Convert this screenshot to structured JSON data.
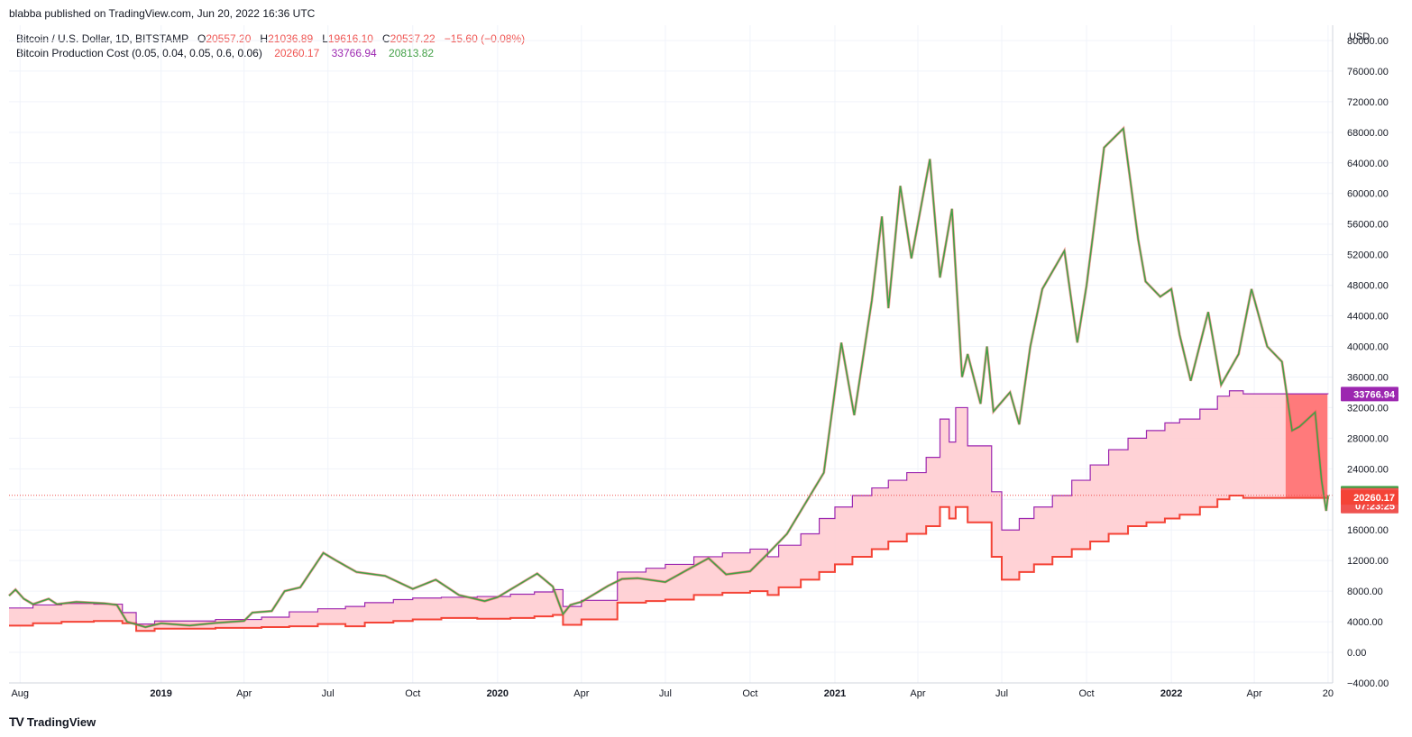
{
  "header": {
    "published": "blabba published on TradingView.com, Jun 20, 2022 16:36 UTC"
  },
  "legend": {
    "symbol": "Bitcoin / U.S. Dollar, 1D, BITSTAMP",
    "o_label": "O",
    "o_value": "20557.20",
    "h_label": "H",
    "h_value": "21036.89",
    "l_label": "L",
    "l_value": "19616.10",
    "c_label": "C",
    "c_value": "20537.22",
    "change": "−15.60 (−0.08%)",
    "indicator": "Bitcoin Production Cost (0.05, 0.04, 0.05, 0.6, 0.06)",
    "ind_v1": "20260.17",
    "ind_v2": "33766.94",
    "ind_v3": "20813.82"
  },
  "brand": {
    "name": "TradingView",
    "logo": "TV"
  },
  "colors": {
    "price_line": "#43a047",
    "candle_up": "#26a69a",
    "candle_down": "#ef5350",
    "lower_cost": "#f44336",
    "upper_cost": "#9c27b0",
    "band_fill": "#ffcdd2",
    "band_fill_strong": "#ff6b6b",
    "grid": "#f0f3fa"
  },
  "chart_data": {
    "type": "line",
    "currency": "USD",
    "ylim": [
      -4000,
      82000
    ],
    "yticks": [
      -4000,
      0,
      4000,
      8000,
      12000,
      16000,
      20000,
      24000,
      28000,
      32000,
      36000,
      40000,
      44000,
      48000,
      52000,
      56000,
      60000,
      64000,
      68000,
      72000,
      76000,
      80000
    ],
    "ytick_labels": [
      "−4000.00",
      "0.00",
      "4000.00",
      "8000.00",
      "12000.00",
      "16000.00",
      "20000.00",
      "24000.00",
      "28000.00",
      "32000.00",
      "36000.00",
      "40000.00",
      "44000.00",
      "48000.00",
      "52000.00",
      "56000.00",
      "60000.00",
      "64000.00",
      "68000.00",
      "72000.00",
      "76000.00",
      "80000.00"
    ],
    "xlim": [
      "2018-07-20",
      "2022-06-25"
    ],
    "xticks": [
      {
        "date": "2018-08-01",
        "label": "Aug",
        "bold": false
      },
      {
        "date": "2019-01-01",
        "label": "2019",
        "bold": true
      },
      {
        "date": "2019-04-01",
        "label": "Apr",
        "bold": false
      },
      {
        "date": "2019-07-01",
        "label": "Jul",
        "bold": false
      },
      {
        "date": "2019-10-01",
        "label": "Oct",
        "bold": false
      },
      {
        "date": "2020-01-01",
        "label": "2020",
        "bold": true
      },
      {
        "date": "2020-04-01",
        "label": "Apr",
        "bold": false
      },
      {
        "date": "2020-07-01",
        "label": "Jul",
        "bold": false
      },
      {
        "date": "2020-10-01",
        "label": "Oct",
        "bold": false
      },
      {
        "date": "2021-01-01",
        "label": "2021",
        "bold": true
      },
      {
        "date": "2021-04-01",
        "label": "Apr",
        "bold": false
      },
      {
        "date": "2021-07-01",
        "label": "Jul",
        "bold": false
      },
      {
        "date": "2021-10-01",
        "label": "Oct",
        "bold": false
      },
      {
        "date": "2022-01-01",
        "label": "2022",
        "bold": true
      },
      {
        "date": "2022-04-01",
        "label": "Apr",
        "bold": false
      },
      {
        "date": "2022-06-20",
        "label": "20",
        "bold": false
      }
    ],
    "grid": true,
    "last_price_line": 20537.22,
    "series": [
      {
        "id": "price",
        "points": [
          [
            "2018-07-20",
            7400
          ],
          [
            "2018-07-27",
            8200
          ],
          [
            "2018-08-05",
            7000
          ],
          [
            "2018-08-15",
            6300
          ],
          [
            "2018-09-01",
            7000
          ],
          [
            "2018-09-10",
            6300
          ],
          [
            "2018-10-01",
            6600
          ],
          [
            "2018-11-01",
            6400
          ],
          [
            "2018-11-14",
            6200
          ],
          [
            "2018-11-25",
            4000
          ],
          [
            "2018-12-15",
            3300
          ],
          [
            "2019-01-01",
            3800
          ],
          [
            "2019-02-01",
            3500
          ],
          [
            "2019-03-01",
            3850
          ],
          [
            "2019-04-01",
            4100
          ],
          [
            "2019-04-10",
            5200
          ],
          [
            "2019-05-01",
            5400
          ],
          [
            "2019-05-15",
            8000
          ],
          [
            "2019-06-01",
            8500
          ],
          [
            "2019-06-26",
            13000
          ],
          [
            "2019-07-10",
            12000
          ],
          [
            "2019-08-01",
            10500
          ],
          [
            "2019-09-01",
            10000
          ],
          [
            "2019-10-01",
            8300
          ],
          [
            "2019-10-26",
            9500
          ],
          [
            "2019-11-20",
            7500
          ],
          [
            "2019-12-18",
            6700
          ],
          [
            "2020-01-01",
            7200
          ],
          [
            "2020-02-13",
            10300
          ],
          [
            "2020-03-01",
            8600
          ],
          [
            "2020-03-12",
            5000
          ],
          [
            "2020-03-20",
            6200
          ],
          [
            "2020-04-01",
            6600
          ],
          [
            "2020-04-30",
            8700
          ],
          [
            "2020-05-15",
            9600
          ],
          [
            "2020-06-01",
            9700
          ],
          [
            "2020-07-01",
            9200
          ],
          [
            "2020-07-28",
            11000
          ],
          [
            "2020-08-17",
            12300
          ],
          [
            "2020-09-05",
            10200
          ],
          [
            "2020-10-01",
            10600
          ],
          [
            "2020-10-21",
            13000
          ],
          [
            "2020-11-10",
            15500
          ],
          [
            "2020-11-30",
            19500
          ],
          [
            "2020-12-20",
            23500
          ],
          [
            "2021-01-08",
            40500
          ],
          [
            "2021-01-22",
            31000
          ],
          [
            "2021-02-10",
            46000
          ],
          [
            "2021-02-21",
            57000
          ],
          [
            "2021-02-28",
            45000
          ],
          [
            "2021-03-13",
            61000
          ],
          [
            "2021-03-25",
            51500
          ],
          [
            "2021-04-14",
            64500
          ],
          [
            "2021-04-25",
            49000
          ],
          [
            "2021-05-08",
            58000
          ],
          [
            "2021-05-19",
            36000
          ],
          [
            "2021-05-25",
            39000
          ],
          [
            "2021-06-08",
            32500
          ],
          [
            "2021-06-15",
            40000
          ],
          [
            "2021-06-22",
            31500
          ],
          [
            "2021-07-10",
            34000
          ],
          [
            "2021-07-20",
            29800
          ],
          [
            "2021-08-01",
            40000
          ],
          [
            "2021-08-14",
            47500
          ],
          [
            "2021-09-07",
            52500
          ],
          [
            "2021-09-21",
            40500
          ],
          [
            "2021-10-01",
            48000
          ],
          [
            "2021-10-20",
            66000
          ],
          [
            "2021-11-10",
            68500
          ],
          [
            "2021-11-26",
            54000
          ],
          [
            "2021-12-04",
            48500
          ],
          [
            "2021-12-20",
            46500
          ],
          [
            "2022-01-01",
            47500
          ],
          [
            "2022-01-10",
            41500
          ],
          [
            "2022-01-22",
            35500
          ],
          [
            "2022-02-10",
            44500
          ],
          [
            "2022-02-24",
            35000
          ],
          [
            "2022-03-15",
            39000
          ],
          [
            "2022-03-29",
            47500
          ],
          [
            "2022-04-15",
            40000
          ],
          [
            "2022-05-01",
            38000
          ],
          [
            "2022-05-12",
            29000
          ],
          [
            "2022-05-20",
            29500
          ],
          [
            "2022-06-06",
            31400
          ],
          [
            "2022-06-13",
            22500
          ],
          [
            "2022-06-18",
            18500
          ],
          [
            "2022-06-20",
            20537
          ]
        ]
      },
      {
        "id": "cost_lower",
        "value": 20260.17,
        "steps": [
          [
            "2018-07-20",
            3500
          ],
          [
            "2018-08-15",
            3800
          ],
          [
            "2018-09-15",
            4000
          ],
          [
            "2018-10-20",
            4100
          ],
          [
            "2018-11-20",
            3800
          ],
          [
            "2018-12-05",
            2800
          ],
          [
            "2018-12-25",
            3100
          ],
          [
            "2019-03-01",
            3200
          ],
          [
            "2019-04-20",
            3300
          ],
          [
            "2019-05-20",
            3400
          ],
          [
            "2019-06-20",
            3700
          ],
          [
            "2019-07-20",
            3400
          ],
          [
            "2019-08-10",
            3900
          ],
          [
            "2019-09-10",
            4100
          ],
          [
            "2019-10-01",
            4300
          ],
          [
            "2019-11-01",
            4500
          ],
          [
            "2019-12-10",
            4400
          ],
          [
            "2020-01-15",
            4500
          ],
          [
            "2020-02-10",
            4700
          ],
          [
            "2020-03-01",
            4900
          ],
          [
            "2020-03-12",
            3600
          ],
          [
            "2020-04-01",
            4300
          ],
          [
            "2020-05-10",
            6500
          ],
          [
            "2020-06-10",
            6700
          ],
          [
            "2020-07-01",
            6900
          ],
          [
            "2020-08-01",
            7500
          ],
          [
            "2020-09-01",
            7800
          ],
          [
            "2020-10-01",
            8000
          ],
          [
            "2020-10-20",
            7500
          ],
          [
            "2020-11-01",
            8500
          ],
          [
            "2020-11-25",
            9500
          ],
          [
            "2020-12-15",
            10500
          ],
          [
            "2021-01-01",
            11500
          ],
          [
            "2021-01-20",
            12500
          ],
          [
            "2021-02-10",
            13500
          ],
          [
            "2021-02-28",
            14500
          ],
          [
            "2021-03-20",
            15500
          ],
          [
            "2021-04-10",
            16500
          ],
          [
            "2021-04-25",
            19000
          ],
          [
            "2021-05-05",
            17500
          ],
          [
            "2021-05-12",
            19000
          ],
          [
            "2021-05-25",
            17000
          ],
          [
            "2021-06-20",
            12500
          ],
          [
            "2021-07-01",
            9500
          ],
          [
            "2021-07-20",
            10500
          ],
          [
            "2021-08-05",
            11500
          ],
          [
            "2021-08-25",
            12500
          ],
          [
            "2021-09-15",
            13500
          ],
          [
            "2021-10-05",
            14500
          ],
          [
            "2021-10-25",
            15500
          ],
          [
            "2021-11-15",
            16500
          ],
          [
            "2021-12-05",
            17000
          ],
          [
            "2021-12-25",
            17500
          ],
          [
            "2022-01-10",
            18000
          ],
          [
            "2022-02-01",
            19000
          ],
          [
            "2022-02-20",
            20000
          ],
          [
            "2022-03-05",
            20500
          ],
          [
            "2022-03-20",
            20200
          ],
          [
            "2022-06-20",
            20260
          ]
        ]
      },
      {
        "id": "cost_upper",
        "value": 33766.94,
        "steps": [
          [
            "2018-07-20",
            5800
          ],
          [
            "2018-08-15",
            6200
          ],
          [
            "2018-09-15",
            6400
          ],
          [
            "2018-10-20",
            6300
          ],
          [
            "2018-11-20",
            5200
          ],
          [
            "2018-12-05",
            3700
          ],
          [
            "2018-12-25",
            4100
          ],
          [
            "2019-03-01",
            4300
          ],
          [
            "2019-04-20",
            4600
          ],
          [
            "2019-05-20",
            5300
          ],
          [
            "2019-06-20",
            5700
          ],
          [
            "2019-07-20",
            6000
          ],
          [
            "2019-08-10",
            6500
          ],
          [
            "2019-09-10",
            6900
          ],
          [
            "2019-10-01",
            7100
          ],
          [
            "2019-11-01",
            7200
          ],
          [
            "2019-12-10",
            7300
          ],
          [
            "2020-01-15",
            7600
          ],
          [
            "2020-02-10",
            7900
          ],
          [
            "2020-03-01",
            8200
          ],
          [
            "2020-03-12",
            6000
          ],
          [
            "2020-04-01",
            6800
          ],
          [
            "2020-05-10",
            10500
          ],
          [
            "2020-06-10",
            11000
          ],
          [
            "2020-07-01",
            11500
          ],
          [
            "2020-08-01",
            12500
          ],
          [
            "2020-09-01",
            13000
          ],
          [
            "2020-10-01",
            13500
          ],
          [
            "2020-10-20",
            12500
          ],
          [
            "2020-11-01",
            14000
          ],
          [
            "2020-11-25",
            15500
          ],
          [
            "2020-12-15",
            17500
          ],
          [
            "2021-01-01",
            19000
          ],
          [
            "2021-01-20",
            20500
          ],
          [
            "2021-02-10",
            21500
          ],
          [
            "2021-02-28",
            22500
          ],
          [
            "2021-03-20",
            23500
          ],
          [
            "2021-04-10",
            25500
          ],
          [
            "2021-04-25",
            30500
          ],
          [
            "2021-05-05",
            27500
          ],
          [
            "2021-05-12",
            32000
          ],
          [
            "2021-05-25",
            27000
          ],
          [
            "2021-06-20",
            21000
          ],
          [
            "2021-07-01",
            16000
          ],
          [
            "2021-07-20",
            17500
          ],
          [
            "2021-08-05",
            19000
          ],
          [
            "2021-08-25",
            20500
          ],
          [
            "2021-09-15",
            22500
          ],
          [
            "2021-10-05",
            24500
          ],
          [
            "2021-10-25",
            26500
          ],
          [
            "2021-11-15",
            28000
          ],
          [
            "2021-12-05",
            29000
          ],
          [
            "2021-12-25",
            30000
          ],
          [
            "2022-01-10",
            30500
          ],
          [
            "2022-02-01",
            31800
          ],
          [
            "2022-02-20",
            33500
          ],
          [
            "2022-03-05",
            34200
          ],
          [
            "2022-03-20",
            33800
          ],
          [
            "2022-06-20",
            33767
          ]
        ]
      }
    ],
    "price_badges": [
      {
        "value": 33766.94,
        "label": "33766.94",
        "color": "#9c27b0"
      },
      {
        "value": 20813.82,
        "label": "20813.82",
        "color": "#43a047"
      },
      {
        "value": 20537.22,
        "label": "20537.22",
        "sublabel": "07:23:25",
        "color": "#ef5350"
      },
      {
        "value": 20260.17,
        "label": "20260.17",
        "color": "#f44336"
      }
    ]
  }
}
